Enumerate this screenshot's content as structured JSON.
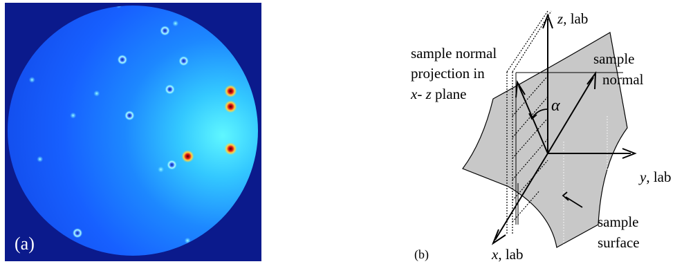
{
  "panel_a": {
    "label": "(a)",
    "colors": {
      "background": "#0b1a8c",
      "field": "#1a5cff",
      "glow": "#33e6ff",
      "spot_core": "#d01010"
    },
    "spots": [
      {
        "u": 0.443,
        "v": 0.009,
        "strength": "weak"
      },
      {
        "u": 0.624,
        "v": 0.108,
        "strength": "medium"
      },
      {
        "u": 0.665,
        "v": 0.08,
        "strength": "weak"
      },
      {
        "u": 0.458,
        "v": 0.22,
        "strength": "medium"
      },
      {
        "u": 0.697,
        "v": 0.225,
        "strength": "medium"
      },
      {
        "u": 0.106,
        "v": 0.298,
        "strength": "weak"
      },
      {
        "u": 0.643,
        "v": 0.335,
        "strength": "medium"
      },
      {
        "u": 0.358,
        "v": 0.351,
        "strength": "weak"
      },
      {
        "u": 0.486,
        "v": 0.436,
        "strength": "medium"
      },
      {
        "u": 0.266,
        "v": 0.436,
        "strength": "weak"
      },
      {
        "u": 0.88,
        "v": 0.342,
        "strength": "strong"
      },
      {
        "u": 0.88,
        "v": 0.402,
        "strength": "strong"
      },
      {
        "u": 0.88,
        "v": 0.565,
        "strength": "strong"
      },
      {
        "u": 0.713,
        "v": 0.594,
        "strength": "strong"
      },
      {
        "u": 0.651,
        "v": 0.627,
        "strength": "medium"
      },
      {
        "u": 0.137,
        "v": 0.605,
        "strength": "weak"
      },
      {
        "u": 0.608,
        "v": 0.645,
        "strength": "weak"
      },
      {
        "u": 0.283,
        "v": 0.891,
        "strength": "medium"
      },
      {
        "u": 0.712,
        "v": 0.92,
        "strength": "weak"
      }
    ]
  },
  "panel_b": {
    "label": "(b)",
    "axes": {
      "z": {
        "symbol": "z",
        "suffix": ", lab"
      },
      "y": {
        "symbol": "y",
        "suffix": ", lab"
      },
      "x": {
        "symbol": "x",
        "suffix": ", lab"
      }
    },
    "sample_normal_label": [
      "sample",
      "normal"
    ],
    "projection_label": {
      "line1": "sample normal",
      "line2": "projection in",
      "line3_x": "x",
      "line3_mid": "- ",
      "line3_z": "z",
      "line3_rest": " plane"
    },
    "alpha": "α",
    "surface_label": [
      "sample",
      "surface"
    ],
    "colors": {
      "surface_fill": "#c8c8c8",
      "ink": "#000000"
    }
  }
}
